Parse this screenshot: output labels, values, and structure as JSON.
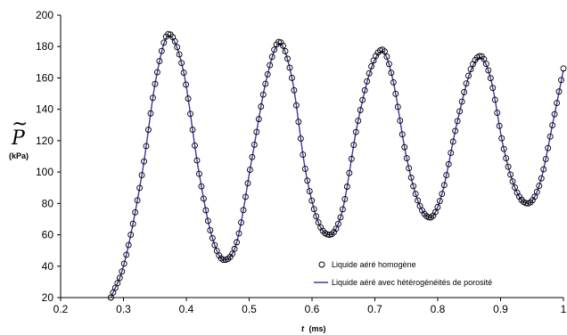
{
  "chart_data": {
    "type": "line",
    "xlabel_var": "t",
    "xlabel_unit": "(ms)",
    "ylabel_symbol": "P",
    "ylabel_tilde": "~",
    "ylabel_unit": "(kPa)",
    "xlim": [
      0.2,
      1.0
    ],
    "ylim": [
      20,
      200
    ],
    "xticks": [
      "0.2",
      "0.3",
      "0.4",
      "0.5",
      "0.6",
      "0.7",
      "0.8",
      "0.9",
      "1"
    ],
    "yticks": [
      "20",
      "40",
      "60",
      "80",
      "100",
      "120",
      "140",
      "160",
      "180",
      "200"
    ],
    "grid": false,
    "legend_position": "bottom-right",
    "series": [
      {
        "name": "Liquide aéré homogène",
        "style": "open-circle-markers",
        "color": "#000000",
        "x": [
          0.28,
          0.3,
          0.33,
          0.352,
          0.372,
          0.395,
          0.42,
          0.44,
          0.46,
          0.48,
          0.505,
          0.528,
          0.548,
          0.568,
          0.59,
          0.61,
          0.628,
          0.648,
          0.672,
          0.695,
          0.712,
          0.728,
          0.75,
          0.77,
          0.788,
          0.806,
          0.83,
          0.852,
          0.868,
          0.884,
          0.905,
          0.925,
          0.943,
          0.962,
          0.985,
          1.0
        ],
        "y": [
          20,
          40,
          100,
          160,
          188,
          165,
          100,
          60,
          44,
          55,
          110,
          160,
          183,
          160,
          100,
          68,
          60,
          75,
          130,
          168,
          178,
          160,
          110,
          80,
          71,
          85,
          130,
          165,
          174,
          160,
          115,
          88,
          80,
          92,
          135,
          166
        ]
      },
      {
        "name": "Liquide aéré avec hétérogénéités de porosité",
        "style": "solid-line",
        "color": "#3a3aa0",
        "x": [
          0.28,
          0.3,
          0.33,
          0.352,
          0.372,
          0.395,
          0.42,
          0.44,
          0.46,
          0.48,
          0.505,
          0.528,
          0.548,
          0.568,
          0.59,
          0.61,
          0.628,
          0.648,
          0.672,
          0.695,
          0.712,
          0.728,
          0.75,
          0.77,
          0.788,
          0.806,
          0.83,
          0.852,
          0.868,
          0.884,
          0.905,
          0.925,
          0.943,
          0.962,
          0.985,
          1.0
        ],
        "y": [
          20,
          40,
          100,
          160,
          187,
          165,
          100,
          60,
          44,
          55,
          110,
          160,
          182,
          160,
          100,
          68,
          60,
          75,
          130,
          167,
          177,
          160,
          110,
          80,
          71,
          85,
          130,
          164,
          173,
          160,
          115,
          88,
          80,
          92,
          135,
          165
        ]
      }
    ]
  }
}
